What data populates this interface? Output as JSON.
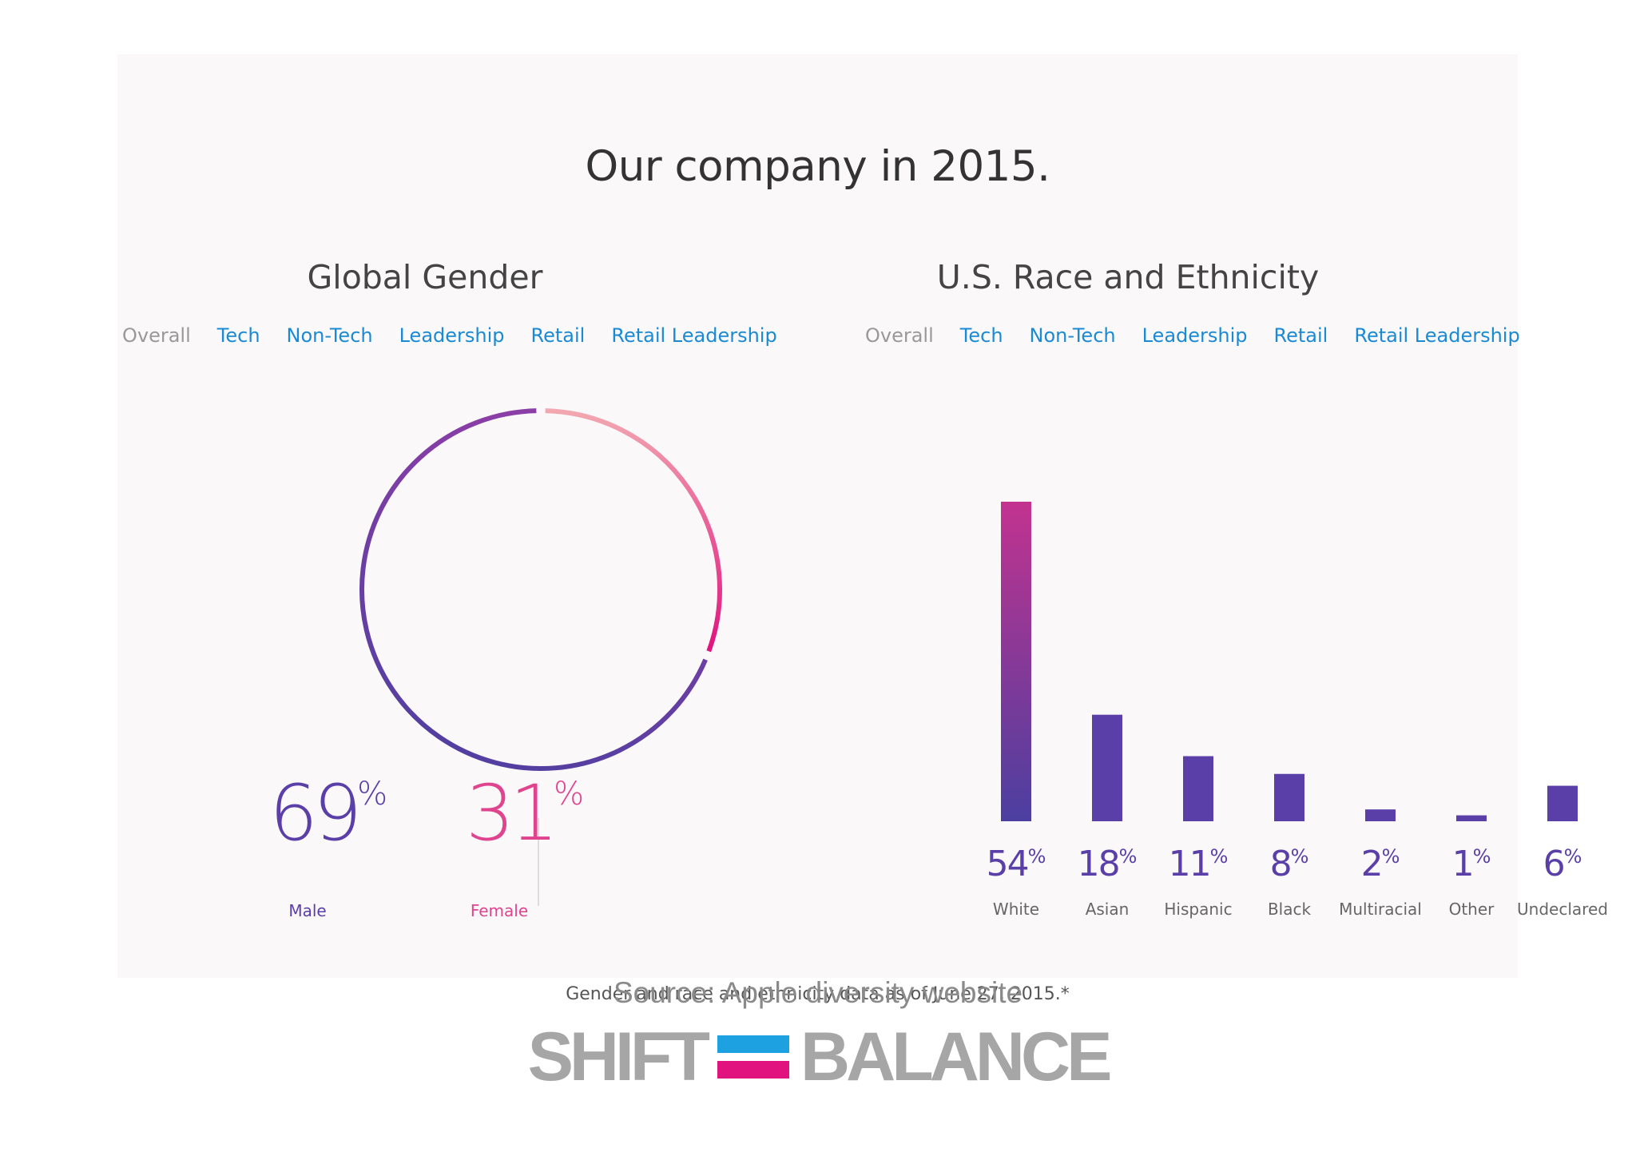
{
  "title": "Our company in 2015.",
  "gender": {
    "heading": "Global Gender",
    "tabs": [
      "Overall",
      "Tech",
      "Non-Tech",
      "Leadership",
      "Retail",
      "Retail Leadership"
    ],
    "active_tab": "Overall",
    "male": {
      "value": "69",
      "unit": "%",
      "label": "Male"
    },
    "female": {
      "value": "31",
      "unit": "%",
      "label": "Female"
    }
  },
  "race": {
    "heading": "U.S. Race and Ethnicity",
    "tabs": [
      "Overall",
      "Tech",
      "Non-Tech",
      "Leadership",
      "Retail",
      "Retail Leadership"
    ],
    "active_tab": "Overall"
  },
  "chart_data": [
    {
      "type": "pie",
      "title": "Global Gender",
      "labels": [
        "Male",
        "Female"
      ],
      "values": [
        69,
        31
      ],
      "colors": [
        "#5b3fa8",
        "#e0448f"
      ]
    },
    {
      "type": "bar",
      "title": "U.S. Race and Ethnicity",
      "categories": [
        "White",
        "Asian",
        "Hispanic",
        "Black",
        "Multiracial",
        "Other",
        "Undeclared"
      ],
      "values": [
        54,
        18,
        11,
        8,
        2,
        1,
        6
      ],
      "value_labels": [
        "54",
        "18",
        "11",
        "8",
        "2",
        "1",
        "6"
      ],
      "unit": "%",
      "colors": {
        "bar": "#5b3fa8",
        "bar_highlight_top": "#c2338f"
      }
    }
  ],
  "footnote": "Gender and race and ethnicity data as of June 27, 2015.*",
  "source": "Source: Apple diversity website",
  "logo": {
    "left": "SHIFT",
    "right": "BALANCE",
    "colors": {
      "top": "#1ea1e0",
      "bottom": "#e0137f",
      "text": "#a6a6a6"
    }
  }
}
